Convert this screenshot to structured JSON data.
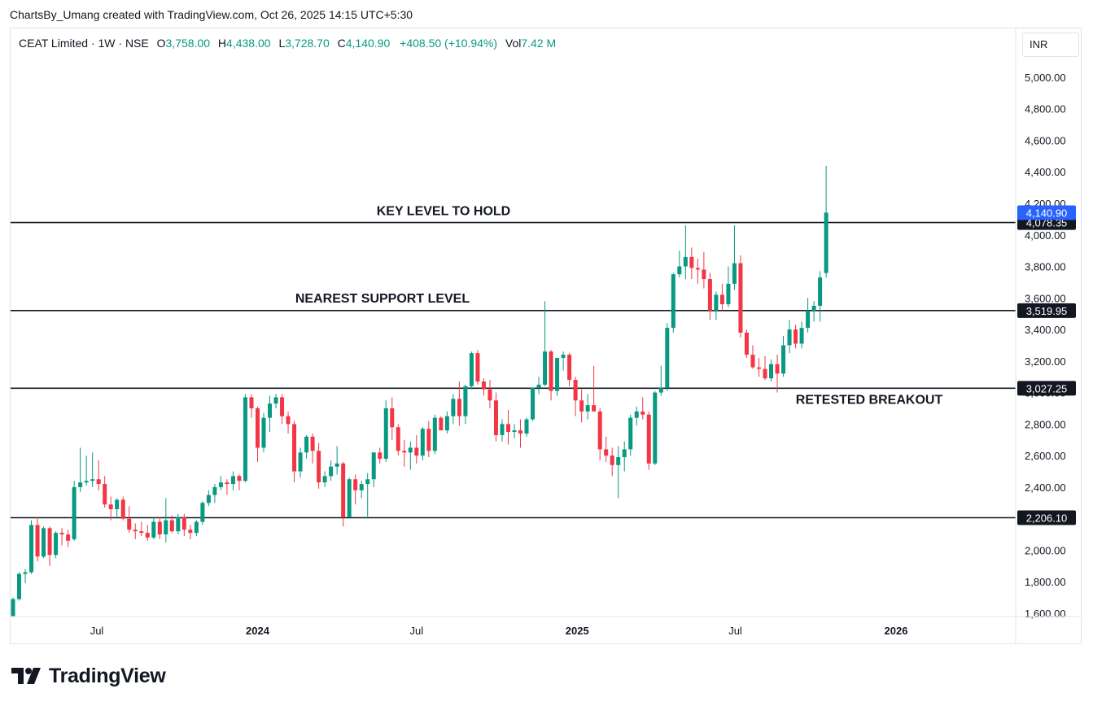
{
  "header": {
    "credit": "ChartsBy_Umang created with TradingView.com, Oct 26, 2025 14:15 UTC+5:30"
  },
  "legend": {
    "symbol": "CEAT Limited · 1W · NSE",
    "open_key": "O",
    "open": "3,758.00",
    "high_key": "H",
    "high": "4,438.00",
    "low_key": "L",
    "low": "3,728.70",
    "close_key": "C",
    "close": "4,140.90",
    "change": "+408.50 (+10.94%)",
    "vol_key": "Vol",
    "vol": "7.42 M"
  },
  "currency": "INR",
  "brand": {
    "name": "TradingView",
    "icon": "tradingview-logo-icon"
  },
  "colors": {
    "up": "#089981",
    "down": "#f23645",
    "last_price": "#2962ff",
    "level": "#131722"
  },
  "chart_data": {
    "type": "candlestick",
    "timeframe": "1W",
    "ylim": [
      1600,
      5100
    ],
    "y_ticks": [
      "1,600.00",
      "1,800.00",
      "2,000.00",
      "2,200.00",
      "2,400.00",
      "2,600.00",
      "2,800.00",
      "3,000.00",
      "3,200.00",
      "3,400.00",
      "3,600.00",
      "3,800.00",
      "4,000.00",
      "4,200.00",
      "4,400.00",
      "4,600.00",
      "4,800.00",
      "5,000.00"
    ],
    "x_ticks": [
      {
        "label": "Jul",
        "date": "2023-07-01",
        "bold": false
      },
      {
        "label": "2024",
        "date": "2024-01-01",
        "bold": true
      },
      {
        "label": "Jul",
        "date": "2024-07-01",
        "bold": false
      },
      {
        "label": "2025",
        "date": "2025-01-01",
        "bold": true
      },
      {
        "label": "Jul",
        "date": "2025-07-01",
        "bold": false
      },
      {
        "label": "2026",
        "date": "2026-01-01",
        "bold": true
      }
    ],
    "first_candle": "2023-03-27",
    "x_end": "2026-05-18",
    "levels": [
      {
        "price": 4078.35,
        "label": "4,078.35",
        "annotation": "KEY LEVEL TO HOLD"
      },
      {
        "price": 3519.95,
        "label": "3,519.95",
        "annotation": "NEAREST SUPPORT LEVEL"
      },
      {
        "price": 3027.25,
        "label": "3,027.25",
        "annotation": "RETESTED BREAKOUT"
      },
      {
        "price": 2206.1,
        "label": "2,206.10",
        "annotation": ""
      }
    ],
    "last_price": {
      "price": 4140.9,
      "label": "4,140.90"
    },
    "candles": [
      [
        1570,
        1700,
        1560,
        1690
      ],
      [
        1690,
        1860,
        1680,
        1850
      ],
      [
        1850,
        1880,
        1790,
        1860
      ],
      [
        1860,
        2190,
        1850,
        2160
      ],
      [
        2160,
        2210,
        1930,
        1960
      ],
      [
        1960,
        2150,
        1950,
        2140
      ],
      [
        2140,
        2150,
        1900,
        1970
      ],
      [
        1970,
        2120,
        1950,
        2110
      ],
      [
        2110,
        2140,
        2030,
        2100
      ],
      [
        2100,
        2130,
        2020,
        2060
      ],
      [
        2070,
        2440,
        2060,
        2400
      ],
      [
        2400,
        2650,
        2370,
        2430
      ],
      [
        2430,
        2600,
        2410,
        2440
      ],
      [
        2440,
        2620,
        2400,
        2450
      ],
      [
        2450,
        2570,
        2380,
        2420
      ],
      [
        2420,
        2470,
        2270,
        2290
      ],
      [
        2290,
        2340,
        2190,
        2260
      ],
      [
        2260,
        2330,
        2200,
        2320
      ],
      [
        2320,
        2340,
        2190,
        2200
      ],
      [
        2200,
        2280,
        2110,
        2130
      ],
      [
        2130,
        2170,
        2070,
        2120
      ],
      [
        2120,
        2180,
        2090,
        2110
      ],
      [
        2110,
        2160,
        2060,
        2080
      ],
      [
        2080,
        2210,
        2070,
        2180
      ],
      [
        2180,
        2210,
        2070,
        2100
      ],
      [
        2100,
        2330,
        2050,
        2190
      ],
      [
        2190,
        2220,
        2110,
        2120
      ],
      [
        2120,
        2230,
        2100,
        2210
      ],
      [
        2210,
        2230,
        2090,
        2130
      ],
      [
        2130,
        2160,
        2070,
        2110
      ],
      [
        2110,
        2190,
        2090,
        2180
      ],
      [
        2180,
        2310,
        2160,
        2300
      ],
      [
        2300,
        2380,
        2280,
        2350
      ],
      [
        2350,
        2420,
        2300,
        2400
      ],
      [
        2400,
        2470,
        2380,
        2430
      ],
      [
        2430,
        2450,
        2350,
        2420
      ],
      [
        2420,
        2500,
        2380,
        2470
      ],
      [
        2470,
        2480,
        2380,
        2440
      ],
      [
        2440,
        2990,
        2430,
        2970
      ],
      [
        2970,
        2990,
        2840,
        2900
      ],
      [
        2900,
        2910,
        2560,
        2650
      ],
      [
        2650,
        2870,
        2620,
        2840
      ],
      [
        2840,
        2980,
        2750,
        2930
      ],
      [
        2930,
        2990,
        2900,
        2970
      ],
      [
        2970,
        2990,
        2800,
        2850
      ],
      [
        2850,
        2880,
        2740,
        2800
      ],
      [
        2800,
        2820,
        2430,
        2500
      ],
      [
        2500,
        2650,
        2460,
        2620
      ],
      [
        2620,
        2730,
        2580,
        2720
      ],
      [
        2720,
        2740,
        2550,
        2630
      ],
      [
        2630,
        2680,
        2390,
        2430
      ],
      [
        2430,
        2500,
        2400,
        2470
      ],
      [
        2470,
        2570,
        2440,
        2530
      ],
      [
        2530,
        2660,
        2480,
        2550
      ],
      [
        2550,
        2560,
        2150,
        2210
      ],
      [
        2210,
        2460,
        2200,
        2450
      ],
      [
        2450,
        2480,
        2290,
        2380
      ],
      [
        2380,
        2440,
        2330,
        2420
      ],
      [
        2420,
        2490,
        2200,
        2450
      ],
      [
        2450,
        2610,
        2400,
        2620
      ],
      [
        2620,
        2650,
        2550,
        2580
      ],
      [
        2580,
        2950,
        2560,
        2900
      ],
      [
        2900,
        2970,
        2700,
        2780
      ],
      [
        2780,
        2800,
        2600,
        2630
      ],
      [
        2630,
        2700,
        2530,
        2620
      ],
      [
        2620,
        2690,
        2510,
        2650
      ],
      [
        2650,
        2730,
        2550,
        2600
      ],
      [
        2600,
        2780,
        2570,
        2770
      ],
      [
        2770,
        2820,
        2590,
        2630
      ],
      [
        2630,
        2860,
        2610,
        2840
      ],
      [
        2840,
        2850,
        2760,
        2760
      ],
      [
        2760,
        2880,
        2740,
        2850
      ],
      [
        2850,
        2990,
        2800,
        2960
      ],
      [
        2960,
        3070,
        2790,
        2850
      ],
      [
        2850,
        3050,
        2800,
        3040
      ],
      [
        3040,
        3260,
        3020,
        3250
      ],
      [
        3250,
        3270,
        3050,
        3070
      ],
      [
        3070,
        3090,
        2980,
        3020
      ],
      [
        3020,
        3080,
        2900,
        2950
      ],
      [
        2950,
        3000,
        2690,
        2730
      ],
      [
        2730,
        2830,
        2690,
        2800
      ],
      [
        2800,
        2890,
        2670,
        2750
      ],
      [
        2750,
        2800,
        2710,
        2760
      ],
      [
        2760,
        2830,
        2650,
        2740
      ],
      [
        2740,
        2840,
        2720,
        2830
      ],
      [
        2830,
        3030,
        2820,
        3030
      ],
      [
        3030,
        3100,
        2990,
        3050
      ],
      [
        3050,
        3580,
        3040,
        3260
      ],
      [
        3260,
        3270,
        2950,
        3010
      ],
      [
        3010,
        3220,
        2980,
        3220
      ],
      [
        3220,
        3260,
        3140,
        3240
      ],
      [
        3240,
        3250,
        3040,
        3080
      ],
      [
        3080,
        3100,
        2850,
        2950
      ],
      [
        2950,
        3020,
        2810,
        2880
      ],
      [
        2880,
        2990,
        2830,
        2920
      ],
      [
        2920,
        3170,
        2890,
        2880
      ],
      [
        2880,
        2900,
        2570,
        2640
      ],
      [
        2640,
        2720,
        2560,
        2600
      ],
      [
        2600,
        2650,
        2470,
        2540
      ],
      [
        2540,
        2660,
        2330,
        2590
      ],
      [
        2590,
        2690,
        2500,
        2640
      ],
      [
        2640,
        2860,
        2600,
        2840
      ],
      [
        2840,
        2910,
        2790,
        2880
      ],
      [
        2880,
        2970,
        2830,
        2860
      ],
      [
        2860,
        2880,
        2510,
        2550
      ],
      [
        2550,
        3010,
        2540,
        3000
      ],
      [
        3000,
        3170,
        2980,
        3030
      ],
      [
        3030,
        3440,
        3010,
        3410
      ],
      [
        3410,
        3760,
        3380,
        3750
      ],
      [
        3750,
        3900,
        3730,
        3800
      ],
      [
        3800,
        4060,
        3720,
        3860
      ],
      [
        3860,
        3920,
        3720,
        3790
      ],
      [
        3790,
        3850,
        3690,
        3780
      ],
      [
        3780,
        3890,
        3660,
        3720
      ],
      [
        3720,
        3760,
        3460,
        3520
      ],
      [
        3520,
        3640,
        3460,
        3620
      ],
      [
        3620,
        3690,
        3520,
        3560
      ],
      [
        3560,
        3800,
        3540,
        3690
      ],
      [
        3690,
        4060,
        3650,
        3820
      ],
      [
        3820,
        3870,
        3350,
        3380
      ],
      [
        3380,
        3400,
        3220,
        3240
      ],
      [
        3240,
        3300,
        3150,
        3160
      ],
      [
        3160,
        3220,
        3100,
        3150
      ],
      [
        3150,
        3230,
        3080,
        3090
      ],
      [
        3090,
        3210,
        3070,
        3180
      ],
      [
        3180,
        3240,
        3000,
        3120
      ],
      [
        3120,
        3360,
        3100,
        3300
      ],
      [
        3300,
        3460,
        3250,
        3400
      ],
      [
        3400,
        3430,
        3280,
        3310
      ],
      [
        3310,
        3450,
        3280,
        3410
      ],
      [
        3410,
        3600,
        3380,
        3520
      ],
      [
        3520,
        3580,
        3450,
        3550
      ],
      [
        3550,
        3770,
        3450,
        3730
      ],
      [
        3758,
        4438,
        3728.7,
        4140.9
      ]
    ]
  }
}
